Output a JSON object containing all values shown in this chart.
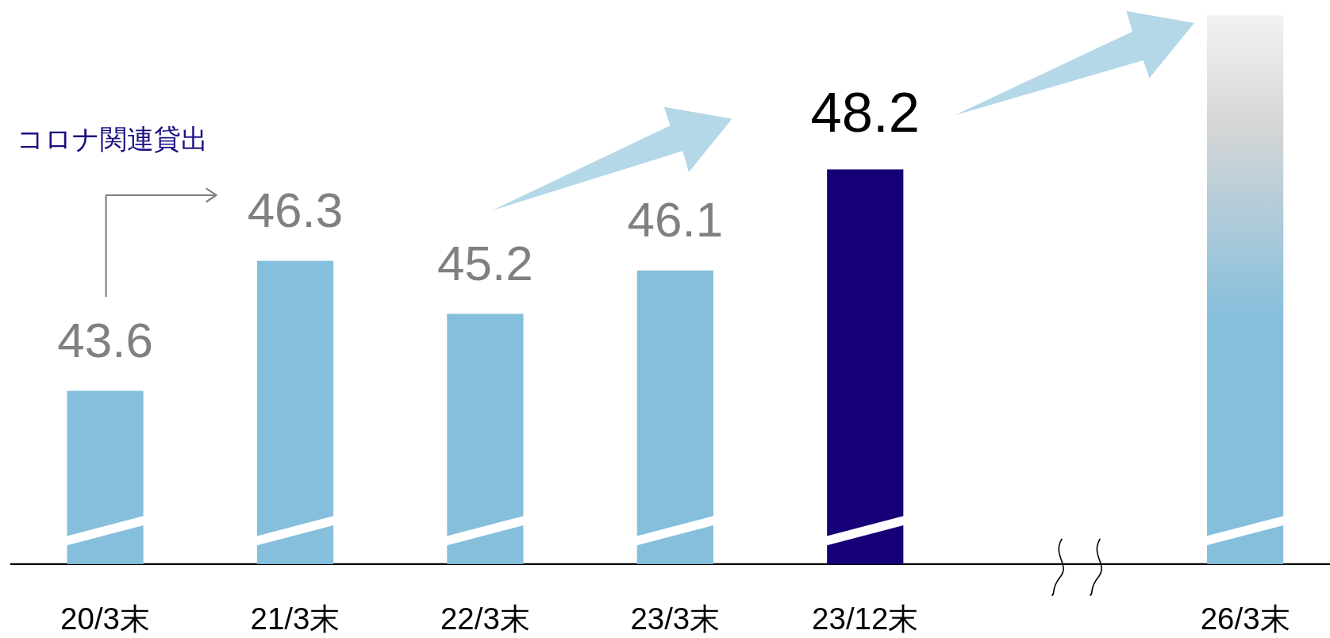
{
  "chart_data": {
    "type": "bar",
    "categories": [
      "20/3末",
      "21/3末",
      "22/3末",
      "23/3末",
      "23/12末",
      null,
      "26/3末"
    ],
    "values": [
      43.6,
      46.3,
      45.2,
      46.1,
      48.2,
      null,
      51.4
    ],
    "colors": [
      "#86bfdc",
      "#86bfdc",
      "#86bfdc",
      "#86bfdc",
      "#170077",
      null,
      "#86bfdc"
    ],
    "value_labels": [
      "43.6",
      "46.3",
      "45.2",
      "46.1",
      "48.2",
      null,
      null
    ],
    "ylim": [
      40,
      51.4
    ],
    "annotations": [
      "コロナ関連貸出"
    ]
  }
}
